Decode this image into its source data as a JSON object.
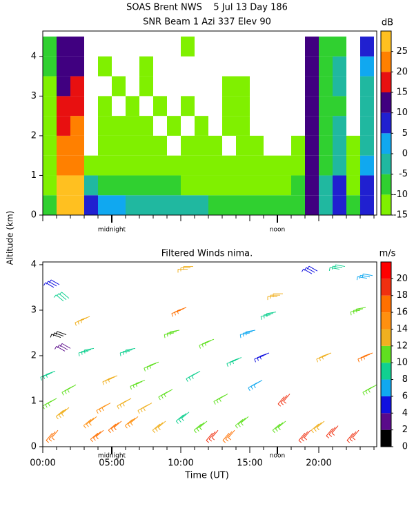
{
  "chart_data": [
    {
      "type": "heatmap",
      "title": "SOAS Brent NWS    5 Jul 13 Day 186",
      "subtitle": "SNR Beam 1 Azi 337 Elev 90",
      "x_edges": [
        0,
        1,
        2,
        3,
        4,
        5,
        6,
        7,
        8,
        9,
        10,
        11,
        12,
        13,
        14,
        15,
        16,
        17,
        18,
        19,
        20,
        21,
        22,
        23,
        24
      ],
      "y_edges": [
        0,
        0.5,
        1,
        1.5,
        2,
        2.5,
        3,
        3.5,
        4,
        4.5
      ],
      "z": [
        [
          -10,
          25,
          25,
          5,
          0,
          0,
          -5,
          -5,
          -5,
          -5,
          -5,
          -5,
          -8,
          -8,
          -8,
          -8,
          -10,
          -8,
          -8,
          10,
          -5,
          5,
          -10,
          5
        ],
        [
          -12,
          25,
          25,
          -5,
          -8,
          -8,
          -10,
          -10,
          -10,
          -10,
          -12,
          -12,
          -12,
          -12,
          -12,
          -12,
          -12,
          -12,
          -10,
          10,
          -5,
          5,
          -12,
          5
        ],
        [
          -12,
          20,
          20,
          -12,
          -12,
          -12,
          -12,
          -12,
          -12,
          -13,
          -13,
          -13,
          -13,
          -13,
          -13,
          -13,
          -13,
          -13,
          -12,
          10,
          -8,
          -5,
          -13,
          0
        ],
        [
          -12,
          20,
          20,
          null,
          -13,
          -13,
          -12,
          -13,
          -13,
          null,
          -13,
          -13,
          -13,
          null,
          -13,
          -13,
          null,
          null,
          -13,
          10,
          -8,
          -5,
          -13,
          -5
        ],
        [
          -12,
          15,
          20,
          null,
          -13,
          -13,
          -13,
          -13,
          null,
          -13,
          null,
          -13,
          null,
          -13,
          -13,
          null,
          null,
          null,
          null,
          10,
          -8,
          -5,
          null,
          -5
        ],
        [
          -12,
          15,
          15,
          null,
          -13,
          null,
          -13,
          null,
          -13,
          null,
          -13,
          null,
          null,
          -13,
          -13,
          null,
          null,
          null,
          null,
          10,
          -10,
          -8,
          null,
          -5
        ],
        [
          -12,
          12,
          15,
          null,
          null,
          -13,
          null,
          -13,
          null,
          null,
          null,
          null,
          null,
          -13,
          -13,
          null,
          null,
          null,
          null,
          10,
          -10,
          -5,
          null,
          -5
        ],
        [
          -10,
          12,
          12,
          null,
          -13,
          null,
          null,
          -13,
          null,
          null,
          null,
          null,
          null,
          null,
          null,
          null,
          null,
          null,
          null,
          10,
          -10,
          -5,
          null,
          0
        ],
        [
          -8,
          10,
          10,
          null,
          null,
          null,
          null,
          null,
          null,
          null,
          -13,
          null,
          null,
          null,
          null,
          null,
          null,
          null,
          null,
          10,
          -8,
          -8,
          null,
          5
        ]
      ],
      "xlim": [
        0,
        24.2
      ],
      "ylim": [
        0,
        4.64
      ],
      "yticks": [
        0,
        1,
        2,
        3,
        4
      ],
      "xticks": [
        0,
        5,
        10,
        15,
        20
      ],
      "xtick_labels": false,
      "minor_xtick_step": 1,
      "annotations": [
        {
          "text": "midnight",
          "x": 5
        },
        {
          "text": "noon",
          "x": 17
        }
      ],
      "colorbar": {
        "label": "dB",
        "lim": [
          -15,
          30
        ],
        "ticks": [
          -15,
          -10,
          -5,
          0,
          5,
          10,
          15,
          20,
          25
        ],
        "colors": [
          "#80f000",
          "#30d030",
          "#20b8a0",
          "#10a8f0",
          "#2020d0",
          "#400080",
          "#e81010",
          "#ff8000",
          "#ffc020"
        ]
      }
    },
    {
      "type": "wind",
      "title": "Filtered Winds nima.",
      "xlabel": "Time (UT)",
      "ylabel": "Altitude (km)",
      "x": [
        0.8,
        1.5,
        1.3,
        1.6,
        0.5,
        0.6,
        0.7,
        1.5,
        2.0,
        3.0,
        3.3,
        3.5,
        4.0,
        4.5,
        5.0,
        5.3,
        6.0,
        6.3,
        6.5,
        7.0,
        7.5,
        8.0,
        8.5,
        9.0,
        9.5,
        10.0,
        10.2,
        10.5,
        11.0,
        11.5,
        12.0,
        12.3,
        13.0,
        13.5,
        14.0,
        14.5,
        15.0,
        15.5,
        16.0,
        16.5,
        17.0,
        17.2,
        17.5,
        19.0,
        19.5,
        20.0,
        20.5,
        21.0,
        21.5,
        22.5,
        23.0,
        23.5,
        23.5,
        23.8
      ],
      "y": [
        3.5,
        3.2,
        2.4,
        2.1,
        1.6,
        1.0,
        0.3,
        0.8,
        1.3,
        2.8,
        2.1,
        0.6,
        0.3,
        0.9,
        1.5,
        0.5,
        1.0,
        2.1,
        0.6,
        1.4,
        0.9,
        1.8,
        0.5,
        1.2,
        2.5,
        3.0,
        0.7,
        3.9,
        1.6,
        0.5,
        2.3,
        0.3,
        1.1,
        0.3,
        1.9,
        0.6,
        2.5,
        1.4,
        2.0,
        2.9,
        3.3,
        0.5,
        1.1,
        0.3,
        3.8,
        0.5,
        2.0,
        0.4,
        3.9,
        0.3,
        3.0,
        2.0,
        3.7,
        1.3
      ],
      "speed": [
        5,
        9,
        1,
        3,
        9,
        11,
        17,
        12,
        11,
        13,
        9,
        15,
        17,
        14,
        12,
        16,
        13,
        9,
        14,
        11,
        13,
        10,
        12,
        10,
        10,
        17,
        8,
        13,
        9,
        10,
        11,
        18,
        10,
        17,
        8,
        10,
        7,
        6,
        5,
        9,
        13,
        10,
        19,
        18,
        4,
        12,
        12,
        19,
        9,
        18,
        10,
        16,
        6,
        11
      ],
      "direction": [
        300,
        310,
        290,
        300,
        250,
        240,
        220,
        230,
        240,
        250,
        260,
        230,
        230,
        240,
        250,
        230,
        240,
        260,
        230,
        250,
        240,
        250,
        230,
        240,
        260,
        250,
        230,
        270,
        240,
        230,
        250,
        220,
        240,
        220,
        250,
        230,
        260,
        240,
        250,
        260,
        270,
        230,
        220,
        220,
        300,
        230,
        250,
        220,
        280,
        220,
        260,
        250,
        280,
        240
      ],
      "xlim": [
        0,
        24.2
      ],
      "ylim": [
        0,
        4.06
      ],
      "yticks": [
        0,
        1,
        2,
        3,
        4
      ],
      "xticks": [
        {
          "value": 0,
          "label": "00:00"
        },
        {
          "value": 5,
          "label": "05:00"
        },
        {
          "value": 10,
          "label": "10:00"
        },
        {
          "value": 15,
          "label": "15:00"
        },
        {
          "value": 20,
          "label": "20:00"
        }
      ],
      "minor_xtick_step": 1,
      "annotations": [
        {
          "text": "midnight",
          "x": 5
        },
        {
          "text": "noon",
          "x": 17
        }
      ],
      "colorbar": {
        "label": "m/s",
        "lim": [
          0,
          22
        ],
        "ticks": [
          0,
          2,
          4,
          6,
          8,
          10,
          12,
          14,
          16,
          18,
          20
        ],
        "colors": [
          "#000000",
          "#5a0a8a",
          "#1010e0",
          "#10a8f0",
          "#10d090",
          "#60e020",
          "#f0b020",
          "#ff9010",
          "#ff7000",
          "#f03010",
          "#ff0000"
        ]
      }
    }
  ]
}
